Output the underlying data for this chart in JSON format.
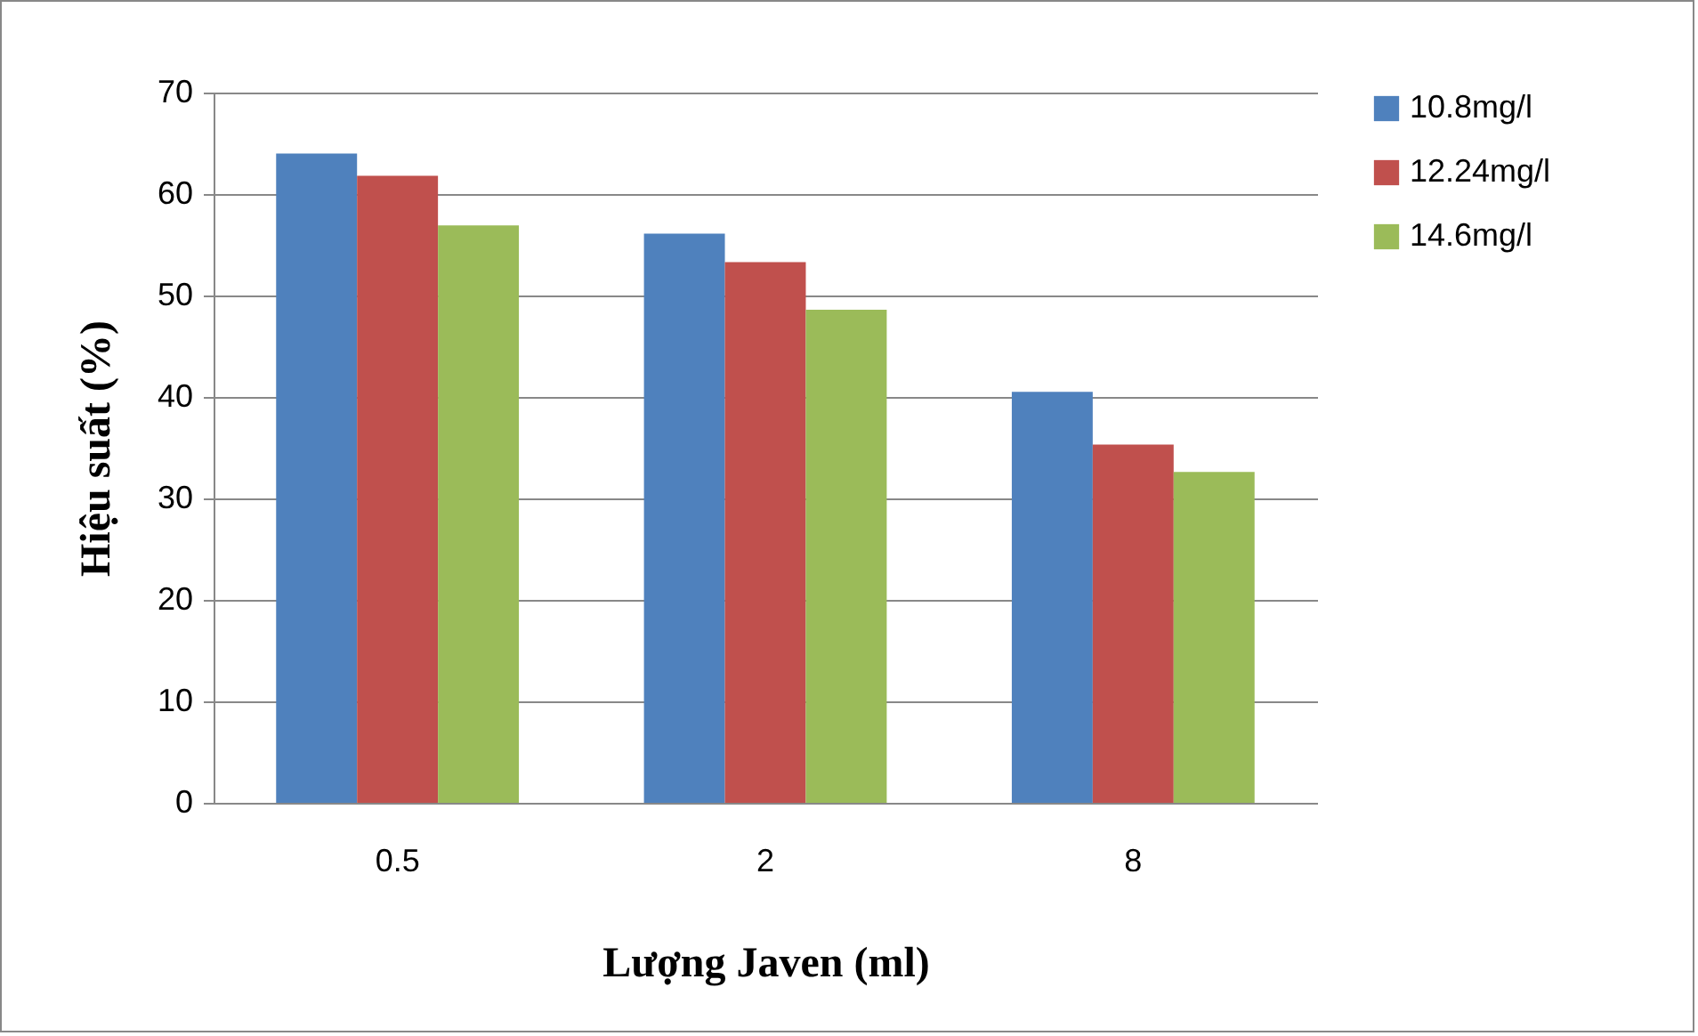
{
  "chart_data": {
    "type": "bar",
    "xlabel": "Lượng Javen (ml)",
    "ylabel": "Hiệu suất (%)",
    "categories": [
      "0.5",
      "2",
      "8"
    ],
    "series": [
      {
        "name": "10.8mg/l",
        "color": "#4f81bd",
        "values": [
          64,
          56.1,
          40.5
        ]
      },
      {
        "name": "12.24mg/l",
        "color": "#c0504d",
        "values": [
          61.8,
          53.3,
          35.3
        ]
      },
      {
        "name": "14.6mg/l",
        "color": "#9bbb59",
        "values": [
          56.9,
          48.6,
          32.6
        ]
      }
    ],
    "ylim": [
      0,
      70
    ],
    "yticks": [
      0,
      10,
      20,
      30,
      40,
      50,
      60,
      70
    ],
    "grid": "y",
    "legend": "right"
  }
}
